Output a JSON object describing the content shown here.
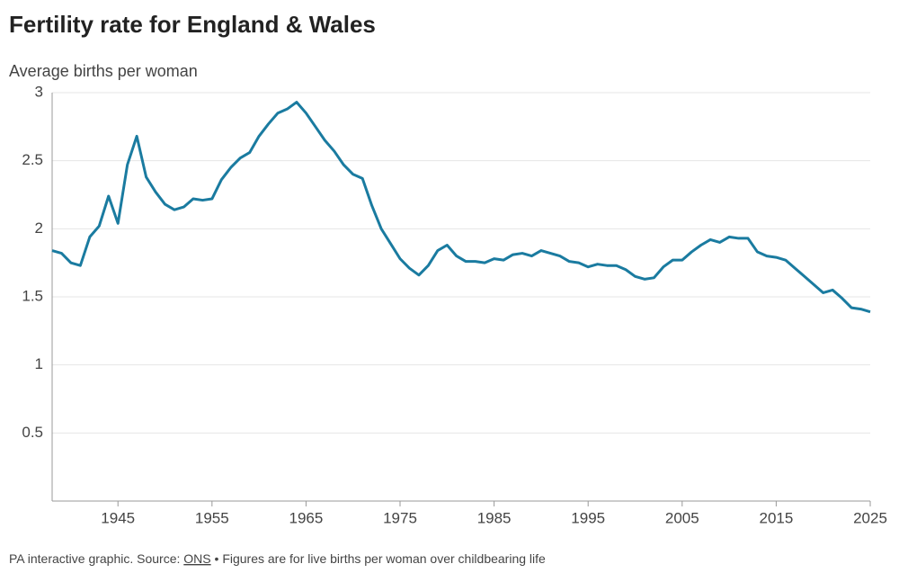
{
  "chart_data": {
    "type": "line",
    "title": "Fertility rate for England & Wales",
    "y_label": "Average births per woman",
    "footer_prefix": "PA interactive graphic. Source: ",
    "footer_source": "ONS",
    "footer_suffix": " • Figures are for live births per woman over childbearing life",
    "x": [
      1938,
      1939,
      1940,
      1941,
      1942,
      1943,
      1944,
      1945,
      1946,
      1947,
      1948,
      1949,
      1950,
      1951,
      1952,
      1953,
      1954,
      1955,
      1956,
      1957,
      1958,
      1959,
      1960,
      1961,
      1962,
      1963,
      1964,
      1965,
      1966,
      1967,
      1968,
      1969,
      1970,
      1971,
      1972,
      1973,
      1974,
      1975,
      1976,
      1977,
      1978,
      1979,
      1980,
      1981,
      1982,
      1983,
      1984,
      1985,
      1986,
      1987,
      1988,
      1989,
      1990,
      1991,
      1992,
      1993,
      1994,
      1995,
      1996,
      1997,
      1998,
      1999,
      2000,
      2001,
      2002,
      2003,
      2004,
      2005,
      2006,
      2007,
      2008,
      2009,
      2010,
      2011,
      2012,
      2013,
      2014,
      2015,
      2016,
      2017,
      2018,
      2019,
      2020,
      2021,
      2022,
      2023,
      2024,
      2025
    ],
    "series": [
      {
        "color": "#1a7ba0",
        "values": [
          1.84,
          1.82,
          1.75,
          1.73,
          1.94,
          2.02,
          2.24,
          2.04,
          2.47,
          2.68,
          2.38,
          2.27,
          2.18,
          2.14,
          2.16,
          2.22,
          2.21,
          2.22,
          2.36,
          2.45,
          2.52,
          2.56,
          2.68,
          2.77,
          2.85,
          2.88,
          2.93,
          2.85,
          2.75,
          2.65,
          2.57,
          2.47,
          2.4,
          2.37,
          2.17,
          2.0,
          1.89,
          1.78,
          1.71,
          1.66,
          1.73,
          1.84,
          1.88,
          1.8,
          1.76,
          1.76,
          1.75,
          1.78,
          1.77,
          1.81,
          1.82,
          1.8,
          1.84,
          1.82,
          1.8,
          1.76,
          1.75,
          1.72,
          1.74,
          1.73,
          1.73,
          1.7,
          1.65,
          1.63,
          1.64,
          1.72,
          1.77,
          1.77,
          1.83,
          1.88,
          1.92,
          1.9,
          1.94,
          1.93,
          1.93,
          1.83,
          1.8,
          1.79,
          1.77,
          1.71,
          1.65,
          1.59,
          1.53,
          1.55,
          1.49,
          1.42,
          1.41,
          1.39
        ]
      }
    ],
    "xlim": [
      1938,
      2025
    ],
    "xticks": [
      1945,
      1955,
      1965,
      1975,
      1985,
      1995,
      2005,
      2015,
      2025
    ],
    "ylim": [
      0,
      3
    ],
    "yticks": [
      0.5,
      1,
      1.5,
      2,
      2.5,
      3
    ],
    "grid": true
  }
}
